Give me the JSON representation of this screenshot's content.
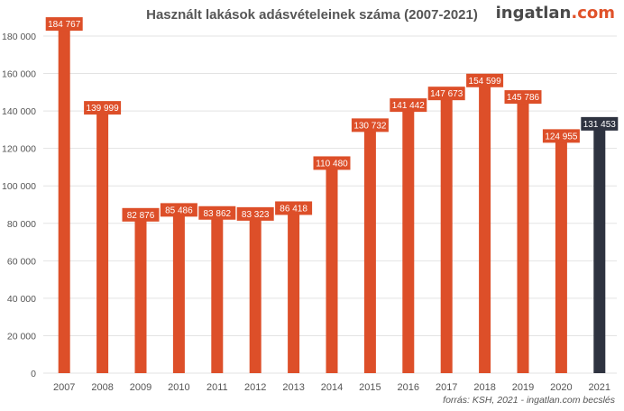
{
  "title": "Használt lakások adásvételeinek száma (2007-2021)",
  "logo": {
    "part1": "ingatlan",
    "part2": ".com"
  },
  "source": "forrás: KSH, 2021 - ingatlan.com becslés",
  "colors": {
    "bar": "#dd4f29",
    "highlight": "#2e3340",
    "grid": "#e3e3e3",
    "text": "#555555"
  },
  "chart_data": {
    "type": "bar",
    "title": "Használt lakások adásvételeinek száma (2007-2021)",
    "categories": [
      "2007",
      "2008",
      "2009",
      "2010",
      "2011",
      "2012",
      "2013",
      "2014",
      "2015",
      "2016",
      "2017",
      "2018",
      "2019",
      "2020",
      "2021"
    ],
    "values": [
      184767,
      139999,
      82876,
      85486,
      83862,
      83323,
      86418,
      110480,
      130732,
      141442,
      147673,
      154599,
      145786,
      124955,
      131453
    ],
    "value_labels": [
      "184 767",
      "139 999",
      "82 876",
      "85 486",
      "83 862",
      "83 323",
      "86 418",
      "110 480",
      "130 732",
      "141 442",
      "147 673",
      "154 599",
      "145 786",
      "124 955",
      "131 453"
    ],
    "highlight_category": "2021",
    "ylim": [
      0,
      180000
    ],
    "yticks": [
      0,
      20000,
      40000,
      60000,
      80000,
      100000,
      120000,
      140000,
      160000,
      180000
    ],
    "ytick_labels": [
      "0",
      "20 000",
      "40 000",
      "60 000",
      "80 000",
      "100 000",
      "120 000",
      "140 000",
      "160 000",
      "180 000"
    ],
    "grid": true,
    "legend": false
  }
}
